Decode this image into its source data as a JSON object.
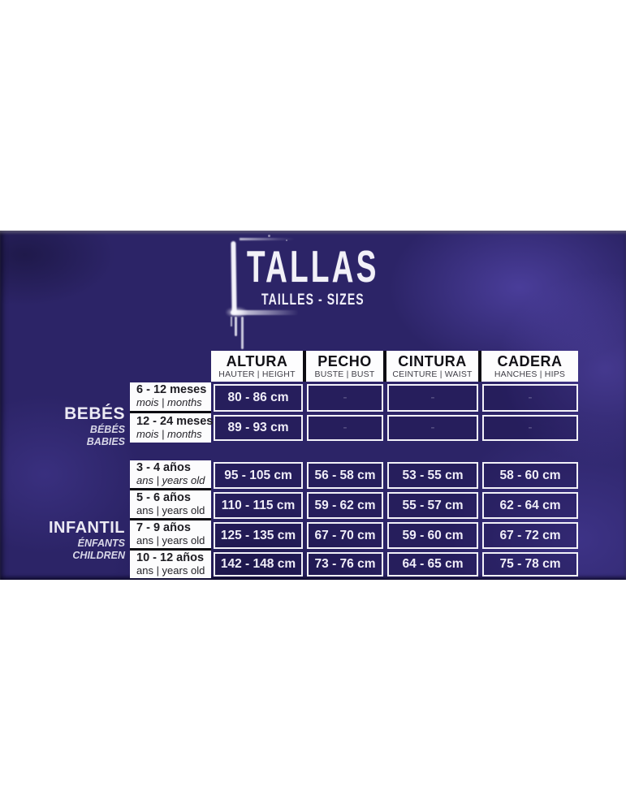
{
  "colors": {
    "banner_base": "#2c2467",
    "banner_blotch": "#4b3d9e",
    "header_background": "#fdfdfe",
    "cell_border": "#f2f1f8",
    "divider_black": "#0d0c12",
    "text_light": "#f0eef8",
    "text_dark": "#1d1c22"
  },
  "chart_data": {
    "type": "table",
    "title": "TALLAS",
    "subtitle": "TAILLES - SIZES",
    "columns": [
      {
        "id": "altura",
        "name": "ALTURA",
        "sub": "HAUTER | HEIGHT"
      },
      {
        "id": "pecho",
        "name": "PECHO",
        "sub": "BUSTE | BUST"
      },
      {
        "id": "cintura",
        "name": "CINTURA",
        "sub": "CEINTURE | WAIST"
      },
      {
        "id": "cadera",
        "name": "CADERA",
        "sub": "HANCHES | HIPS"
      }
    ],
    "sections": [
      {
        "id": "bebes",
        "label": {
          "main": "BEBÉS",
          "line2": "BÉBÉS",
          "line3": "BABIES"
        },
        "rows": [
          {
            "age": "6 - 12 meses",
            "age_sub": "mois | months",
            "age_sub_italic": true,
            "values": [
              "80 - 86 cm",
              "-",
              "-",
              "-"
            ]
          },
          {
            "age": "12 - 24 meses",
            "age_sub": "mois | months",
            "age_sub_italic": true,
            "values": [
              "89 - 93 cm",
              "-",
              "-",
              "-"
            ]
          }
        ]
      },
      {
        "id": "infantil",
        "label": {
          "main": "INFANTIL",
          "line2": "ÉNFANTS",
          "line3": "CHILDREN"
        },
        "rows": [
          {
            "age": "3 - 4 años",
            "age_sub": "ans | years old",
            "age_sub_italic": true,
            "values": [
              "95 - 105 cm",
              "56 - 58 cm",
              "53 - 55 cm",
              "58 - 60 cm"
            ]
          },
          {
            "age": "5 - 6 años",
            "age_sub": "ans | years old",
            "age_sub_italic": false,
            "values": [
              "110 - 115 cm",
              "59 - 62 cm",
              "55 - 57 cm",
              "62 - 64 cm"
            ]
          },
          {
            "age": "7 - 9 años",
            "age_sub": "ans | years old",
            "age_sub_italic": false,
            "values": [
              "125 - 135 cm",
              "67 - 70 cm",
              "59 - 60 cm",
              "67 - 72 cm"
            ]
          },
          {
            "age": "10 - 12 años",
            "age_sub": "ans | years old",
            "age_sub_italic": false,
            "values": [
              "142 - 148 cm",
              "73 - 76 cm",
              "64 - 65 cm",
              "75 - 78 cm"
            ]
          }
        ]
      }
    ]
  }
}
